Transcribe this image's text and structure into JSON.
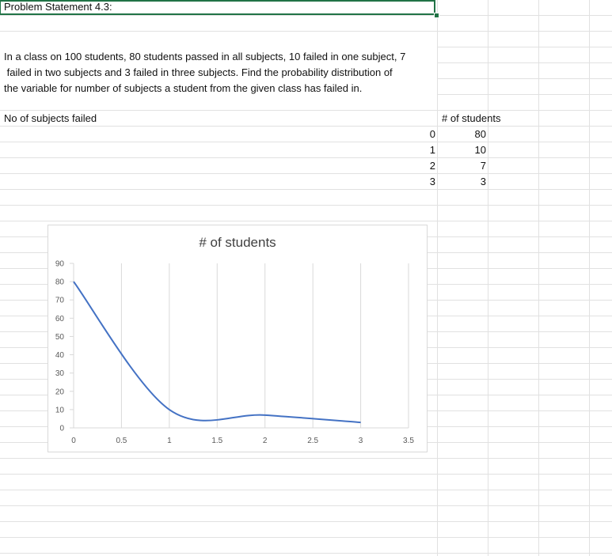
{
  "sheet": {
    "heading": "Problem Statement 4.3:",
    "problem_lines": [
      "In a class on 100 students, 80 students passed in all subjects, 10 failed in one subject, 7",
      " failed in two subjects and 3 failed in three subjects. Find the probability distribution of",
      "the variable for number of subjects a student from the given class has failed in."
    ],
    "col_a_header": "No of subjects failed",
    "col_b_header": "# of students",
    "subjects_failed": [
      "0",
      "1",
      "2",
      "3"
    ],
    "students": [
      "80",
      "10",
      "7",
      "3"
    ]
  },
  "colors": {
    "gridline": "#e1e1e1",
    "selection": "#217346",
    "series": "#4472c4"
  },
  "chart_data": {
    "type": "scatter",
    "style": "smooth-line",
    "title": "# of students",
    "series": [
      {
        "values": [
          {
            "x": 0,
            "y": 80
          },
          {
            "x": 1,
            "y": 10
          },
          {
            "x": 2,
            "y": 7
          },
          {
            "x": 3,
            "y": 3
          }
        ]
      }
    ],
    "xlim": [
      0,
      3.5
    ],
    "ylim": [
      0,
      90
    ],
    "x_ticks": [
      "0",
      "0.5",
      "1",
      "1.5",
      "2",
      "2.5",
      "3",
      "3.5"
    ],
    "y_ticks": [
      "0",
      "10",
      "20",
      "30",
      "40",
      "50",
      "60",
      "70",
      "80",
      "90"
    ],
    "grid": "vertical",
    "legend": "none"
  }
}
